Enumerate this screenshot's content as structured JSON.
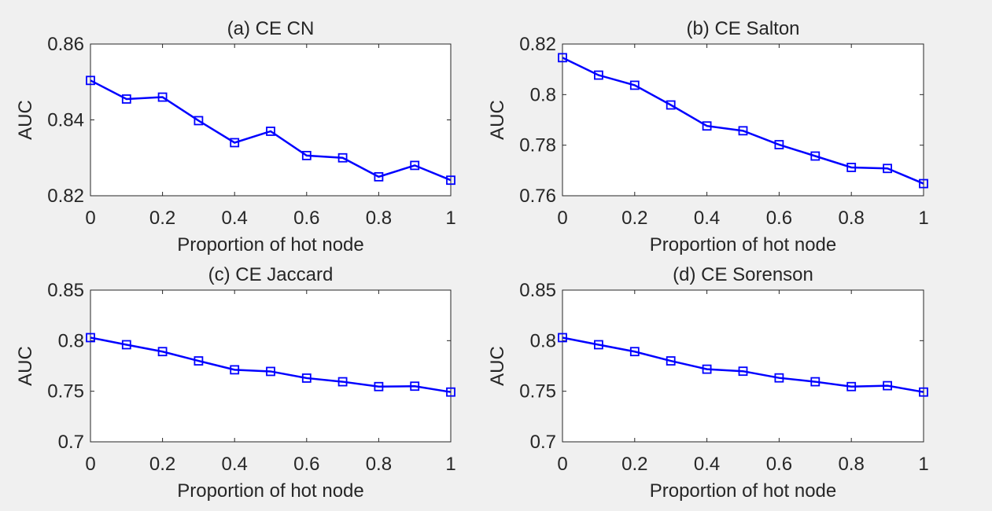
{
  "figure": {
    "background": "#f0f0f0",
    "line_color": "#0000ff"
  },
  "chart_data": [
    {
      "type": "line",
      "title": "(a) CE CN",
      "xlabel": "Proportion of hot node",
      "ylabel": "AUC",
      "xlim": [
        0,
        1
      ],
      "ylim": [
        0.82,
        0.86
      ],
      "x_ticks": [
        "0",
        "0.2",
        "0.4",
        "0.6",
        "0.8",
        "1"
      ],
      "y_ticks": [
        "0.82",
        "0.84",
        "0.86"
      ],
      "marker": "square",
      "grid": false,
      "series": [
        {
          "x": [
            0,
            0.1,
            0.2,
            0.3,
            0.4,
            0.5,
            0.6,
            0.7,
            0.8,
            0.9,
            1.0
          ],
          "values": [
            0.8504,
            0.8455,
            0.846,
            0.8398,
            0.834,
            0.837,
            0.8306,
            0.83,
            0.825,
            0.828,
            0.8241
          ]
        }
      ]
    },
    {
      "type": "line",
      "title": "(b) CE Salton",
      "xlabel": "Proportion of hot node",
      "ylabel": "AUC",
      "xlim": [
        0,
        1
      ],
      "ylim": [
        0.76,
        0.82
      ],
      "x_ticks": [
        "0",
        "0.2",
        "0.4",
        "0.6",
        "0.8",
        "1"
      ],
      "y_ticks": [
        "0.76",
        "0.78",
        "0.8",
        "0.82"
      ],
      "marker": "square",
      "grid": false,
      "series": [
        {
          "x": [
            0,
            0.1,
            0.2,
            0.3,
            0.4,
            0.5,
            0.6,
            0.7,
            0.8,
            0.9,
            1.0
          ],
          "values": [
            0.8146,
            0.8077,
            0.8037,
            0.7959,
            0.7876,
            0.7857,
            0.7802,
            0.7757,
            0.7712,
            0.7708,
            0.7648
          ]
        }
      ]
    },
    {
      "type": "line",
      "title": "(c) CE Jaccard",
      "xlabel": "Proportion of hot node",
      "ylabel": "AUC",
      "xlim": [
        0,
        1
      ],
      "ylim": [
        0.7,
        0.85
      ],
      "x_ticks": [
        "0",
        "0.2",
        "0.4",
        "0.6",
        "0.8",
        "1"
      ],
      "y_ticks": [
        "0.7",
        "0.75",
        "0.8",
        "0.85"
      ],
      "marker": "square",
      "grid": false,
      "series": [
        {
          "x": [
            0,
            0.1,
            0.2,
            0.3,
            0.4,
            0.5,
            0.6,
            0.7,
            0.8,
            0.9,
            1.0
          ],
          "values": [
            0.803,
            0.796,
            0.7892,
            0.78,
            0.7712,
            0.7696,
            0.763,
            0.7594,
            0.7546,
            0.755,
            0.7492
          ]
        }
      ]
    },
    {
      "type": "line",
      "title": "(d) CE Sorenson",
      "xlabel": "Proportion of hot node",
      "ylabel": "AUC",
      "xlim": [
        0,
        1
      ],
      "ylim": [
        0.7,
        0.85
      ],
      "x_ticks": [
        "0",
        "0.2",
        "0.4",
        "0.6",
        "0.8",
        "1"
      ],
      "y_ticks": [
        "0.7",
        "0.75",
        "0.8",
        "0.85"
      ],
      "marker": "square",
      "grid": false,
      "series": [
        {
          "x": [
            0,
            0.1,
            0.2,
            0.3,
            0.4,
            0.5,
            0.6,
            0.7,
            0.8,
            0.9,
            1.0
          ],
          "values": [
            0.803,
            0.796,
            0.7892,
            0.78,
            0.7718,
            0.7698,
            0.7632,
            0.7594,
            0.7546,
            0.7555,
            0.7492
          ]
        }
      ]
    }
  ]
}
